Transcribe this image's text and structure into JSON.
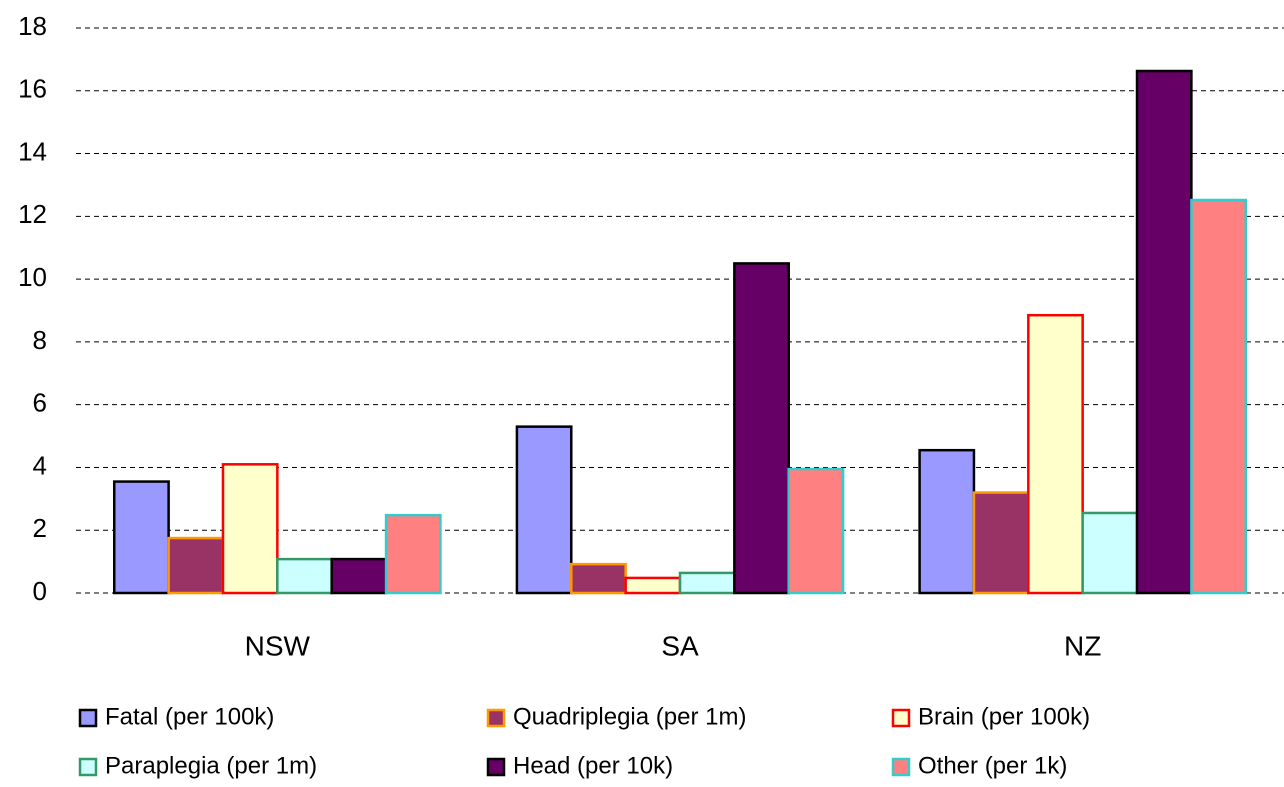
{
  "chart_data": {
    "type": "bar",
    "categories": [
      "NSW",
      "SA",
      "NZ"
    ],
    "series": [
      {
        "name": "Fatal (per 100k)",
        "color": "#9999ff",
        "edge_color": "#000000",
        "values": [
          3.55,
          5.3,
          4.55
        ]
      },
      {
        "name": "Quadriplegia (per 1m)",
        "color": "#993366",
        "edge_color": "#ff9900",
        "values": [
          1.75,
          0.92,
          3.2
        ]
      },
      {
        "name": "Brain (per 100k)",
        "color": "#ffffcc",
        "edge_color": "#ff0000",
        "values": [
          4.1,
          0.48,
          8.85
        ]
      },
      {
        "name": "Paraplegia (per 1m)",
        "color": "#ccffff",
        "edge_color": "#339966",
        "values": [
          1.08,
          0.64,
          2.55
        ]
      },
      {
        "name": "Head (per 10k)",
        "color": "#660066",
        "edge_color": "#000000",
        "values": [
          1.08,
          10.5,
          16.63
        ]
      },
      {
        "name": "Other (per 1k)",
        "color": "#ff8080",
        "edge_color": "#33cccc",
        "values": [
          2.48,
          3.95,
          12.52
        ]
      }
    ],
    "ylim": [
      0,
      18
    ],
    "yticks": [
      0,
      2,
      4,
      6,
      8,
      10,
      12,
      14,
      16,
      18
    ],
    "grid": true,
    "legend": "bottom"
  }
}
